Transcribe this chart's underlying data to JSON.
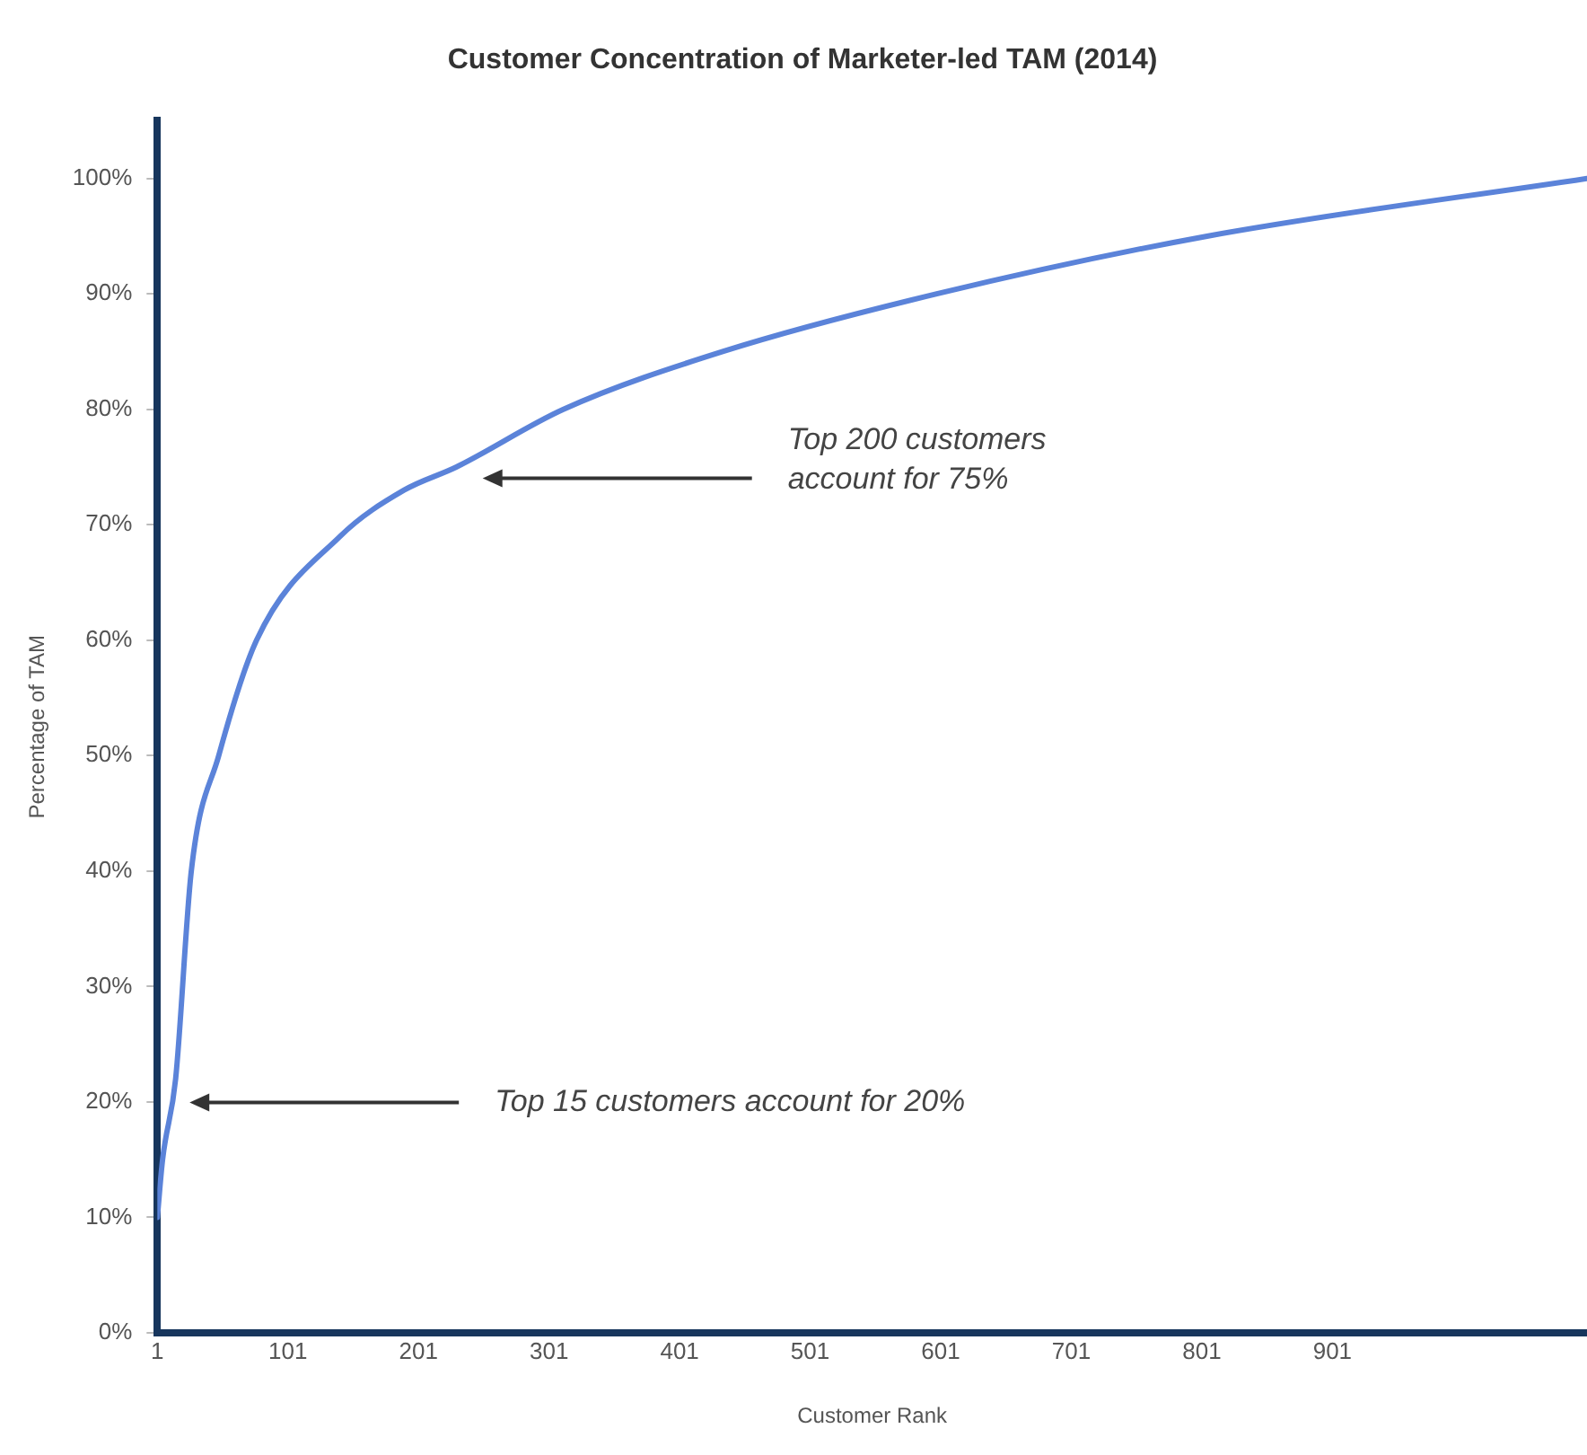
{
  "chart_data": {
    "type": "line",
    "title": "Customer Concentration of Marketer-led TAM (2014)",
    "xlabel": "Customer Rank",
    "ylabel": "Percentage of TAM",
    "x": [
      1,
      5,
      15,
      27,
      48,
      77,
      141,
      190,
      230,
      312,
      434,
      598,
      805,
      1096
    ],
    "series": [
      {
        "color": "#5b83d9",
        "values": [
          10,
          15,
          22,
          40,
          50,
          60,
          69,
          73,
          75,
          80,
          85,
          90,
          95,
          100
        ]
      }
    ],
    "xlim": [
      1,
      1096
    ],
    "xticks": [
      1,
      101,
      201,
      301,
      401,
      501,
      601,
      701,
      801,
      901
    ],
    "ylim": [
      0,
      105
    ],
    "yticks": [
      {
        "value": 0,
        "label": "0%"
      },
      {
        "value": 10,
        "label": "10%"
      },
      {
        "value": 20,
        "label": "20%"
      },
      {
        "value": 30,
        "label": "30%"
      },
      {
        "value": 40,
        "label": "40%"
      },
      {
        "value": 50,
        "label": "50%"
      },
      {
        "value": 60,
        "label": "60%"
      },
      {
        "value": 70,
        "label": "70%"
      },
      {
        "value": 80,
        "label": "80%"
      },
      {
        "value": 90,
        "label": "90%"
      },
      {
        "value": 100,
        "label": "100%"
      }
    ],
    "grid": false,
    "legend": false,
    "marker": "none",
    "line_style": "solid",
    "annotations": [
      "Top 200 customers\naccount for 75%",
      "Top 15 customers account for 20%"
    ]
  }
}
